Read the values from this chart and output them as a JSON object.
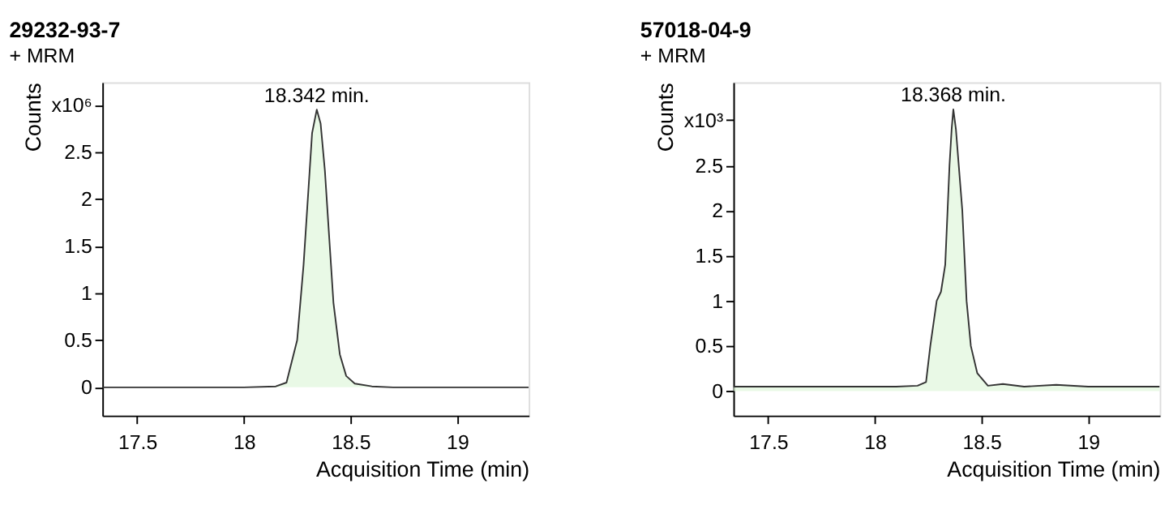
{
  "chart_data": [
    {
      "type": "area",
      "title": "29232-93-7",
      "subtitle": "+ MRM",
      "xlabel": "Acquisition Time (min)",
      "ylabel": "Counts",
      "grid": false,
      "x": [
        17.337,
        18.0,
        18.15,
        18.2,
        18.25,
        18.28,
        18.3,
        18.32,
        18.342,
        18.36,
        18.38,
        18.4,
        18.42,
        18.45,
        18.48,
        18.52,
        18.6,
        18.7,
        19.335
      ],
      "series": [
        {
          "color": "#e0f7dc",
          "values": [
            0.0,
            0.0,
            0.01,
            0.05,
            0.5,
            1.3,
            2.0,
            2.7,
            2.95,
            2.8,
            2.3,
            1.6,
            0.9,
            0.35,
            0.12,
            0.04,
            0.01,
            0.0,
            0.0
          ]
        }
      ],
      "xlim": [
        17.337,
        19.335
      ],
      "xticks": [
        17.5,
        18,
        18.5,
        19
      ],
      "ylim": [
        -0.3,
        3.24
      ],
      "yticks": [
        0,
        0.5,
        1,
        1.5,
        2,
        2.5,
        {
          "value": 3,
          "label": "x10⁶"
        }
      ],
      "annotations": [
        {
          "text": "18.342 min.",
          "x": 18.342,
          "y": 2.95
        }
      ]
    },
    {
      "type": "area",
      "title": "57018-04-9",
      "subtitle": "+ MRM",
      "xlabel": "Acquisition Time (min)",
      "ylabel": "Counts",
      "grid": false,
      "x": [
        17.337,
        17.5,
        17.7,
        17.9,
        18.1,
        18.2,
        18.24,
        18.26,
        18.29,
        18.31,
        18.33,
        18.35,
        18.36,
        18.368,
        18.38,
        18.41,
        18.43,
        18.45,
        18.48,
        18.53,
        18.6,
        18.7,
        18.85,
        19.0,
        19.2,
        19.335
      ],
      "series": [
        {
          "color": "#e0f7dc",
          "values": [
            0.05,
            0.05,
            0.05,
            0.05,
            0.05,
            0.06,
            0.1,
            0.5,
            1.0,
            1.1,
            1.4,
            2.5,
            2.9,
            3.12,
            2.9,
            2.0,
            1.0,
            0.5,
            0.2,
            0.06,
            0.08,
            0.05,
            0.07,
            0.05,
            0.05,
            0.05
          ]
        }
      ],
      "xlim": [
        17.337,
        19.335
      ],
      "xticks": [
        17.5,
        18,
        18.5,
        19
      ],
      "ylim": [
        -0.27,
        3.42
      ],
      "yticks": [
        0,
        0.5,
        1,
        1.5,
        2,
        2.5,
        {
          "value": 3,
          "label": "x10³"
        }
      ],
      "annotations": [
        {
          "text": "18.368 min.",
          "x": 18.368,
          "y": 3.12
        }
      ]
    }
  ]
}
